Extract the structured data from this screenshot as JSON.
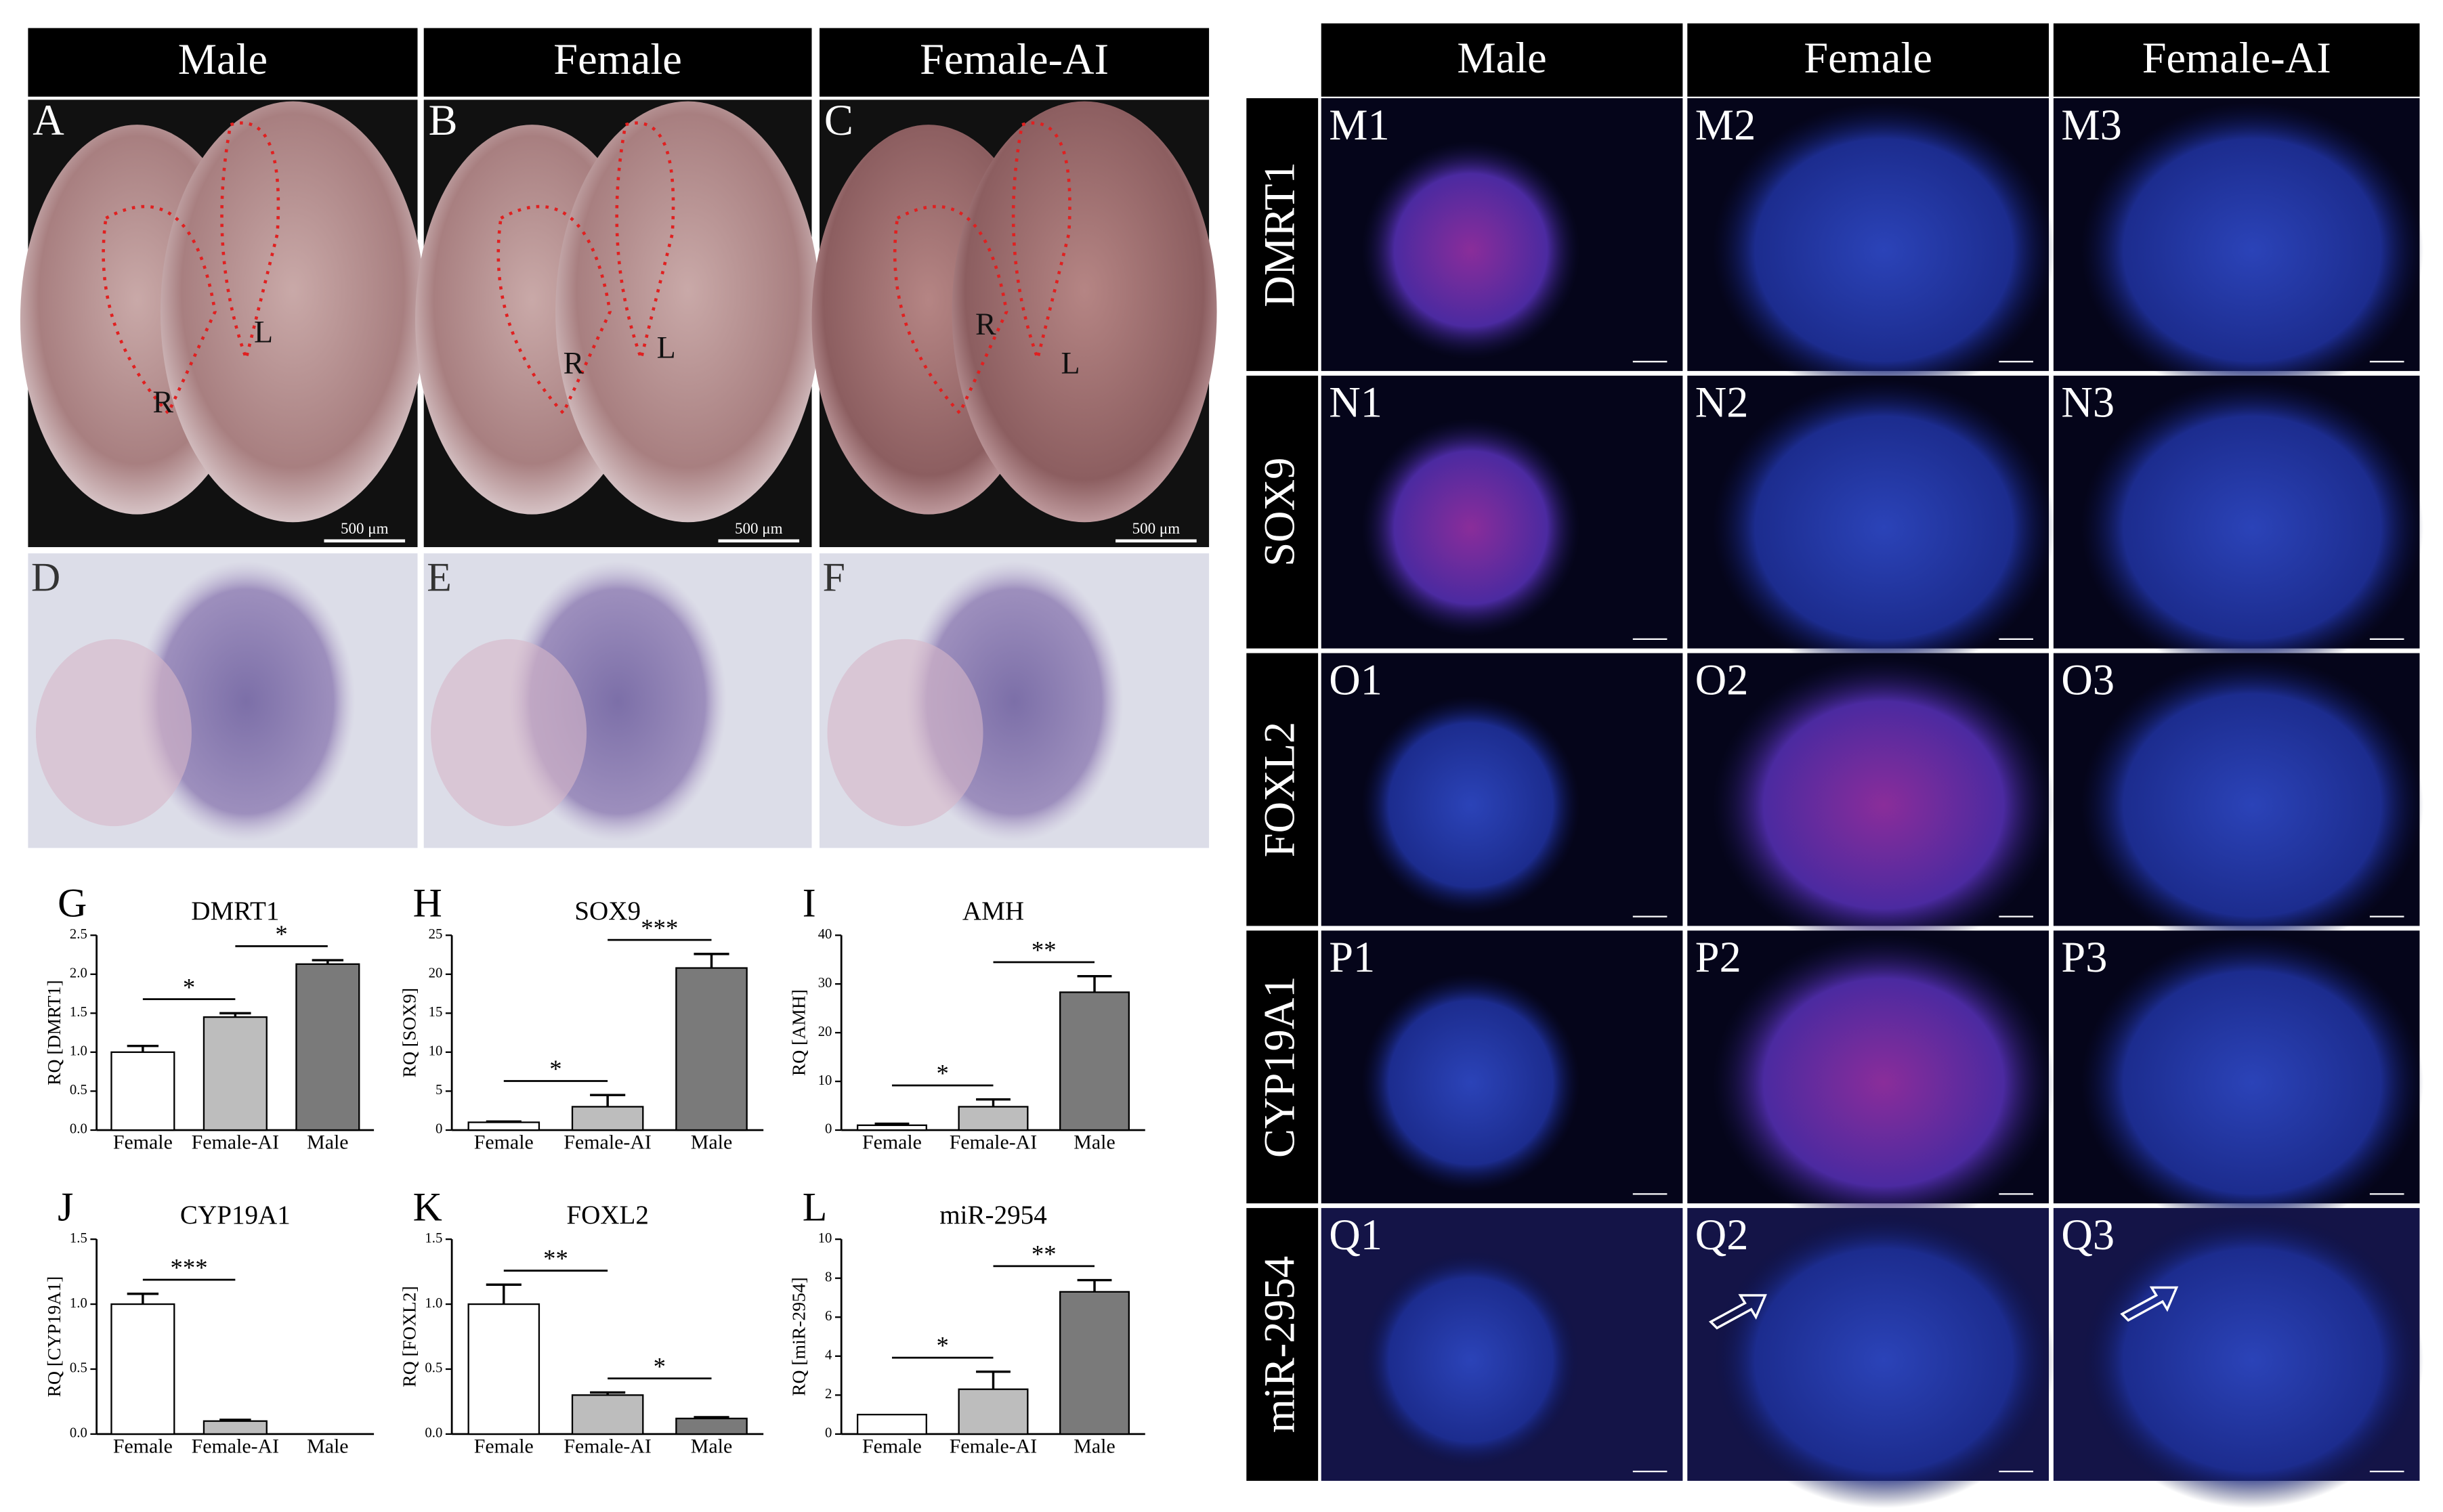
{
  "figure": {
    "left": {
      "columns": [
        "Male",
        "Female",
        "Female-AI"
      ],
      "panels": [
        [
          "A",
          "B",
          "C"
        ],
        [
          "D",
          "E",
          "F"
        ]
      ],
      "lobe_labels": [
        "R",
        "L"
      ],
      "scale_bar": "500 μm"
    },
    "right": {
      "columns": [
        "Male",
        "Female",
        "Female-AI"
      ],
      "rows": [
        {
          "label": "DMRT1",
          "panels": [
            "M1",
            "M2",
            "M3"
          ]
        },
        {
          "label": "SOX9",
          "panels": [
            "N1",
            "N2",
            "N3"
          ]
        },
        {
          "label": "FOXL2",
          "panels": [
            "O1",
            "O2",
            "O3"
          ]
        },
        {
          "label": "CYP19A1",
          "panels": [
            "P1",
            "P2",
            "P3"
          ]
        },
        {
          "label": "miR-2954",
          "panels": [
            "Q1",
            "Q2",
            "Q3"
          ]
        }
      ]
    }
  },
  "chart_data": [
    {
      "type": "bar",
      "panel": "G",
      "title": "DMRT1",
      "y_label": "RQ [DMRT1]",
      "categories": [
        "Female",
        "Female-AI",
        "Male"
      ],
      "values": [
        1.0,
        1.45,
        2.13
      ],
      "errors": [
        0.08,
        0.05,
        0.05
      ],
      "colors": [
        "#ffffff",
        "#bdbdbd",
        "#7a7a7a"
      ],
      "ylim": [
        0,
        2.5
      ],
      "yticks": [
        {
          "value": 0,
          "label": "0.0"
        },
        {
          "value": 0.5,
          "label": "0.5"
        },
        {
          "value": 1,
          "label": "1.0"
        },
        {
          "value": 1.5,
          "label": "1.5"
        },
        {
          "value": 2,
          "label": "2.0"
        },
        {
          "value": 2.5,
          "label": "2.5"
        }
      ],
      "annotations": [
        {
          "label": "*",
          "between": [
            "Female",
            "Female-AI"
          ]
        },
        {
          "label": "*",
          "between": [
            "Female-AI",
            "Male"
          ]
        }
      ]
    },
    {
      "type": "bar",
      "panel": "H",
      "title": "SOX9",
      "y_label": "RQ [SOX9]",
      "categories": [
        "Female",
        "Female-AI",
        "Male"
      ],
      "values": [
        1.0,
        3.0,
        20.8
      ],
      "errors": [
        0.1,
        1.5,
        1.8
      ],
      "colors": [
        "#ffffff",
        "#bdbdbd",
        "#7a7a7a"
      ],
      "ylim": [
        0,
        25
      ],
      "yticks": [
        0,
        5,
        10,
        15,
        20,
        25
      ],
      "annotations": [
        {
          "label": "*",
          "between": [
            "Female",
            "Female-AI"
          ]
        },
        {
          "label": "***",
          "between": [
            "Female-AI",
            "Male"
          ]
        }
      ]
    },
    {
      "type": "bar",
      "panel": "I",
      "title": "AMH",
      "y_label": "RQ [AMH]",
      "categories": [
        "Female",
        "Female-AI",
        "Male"
      ],
      "values": [
        1.0,
        4.8,
        28.3
      ],
      "errors": [
        0.3,
        1.5,
        3.3
      ],
      "colors": [
        "#ffffff",
        "#bdbdbd",
        "#7a7a7a"
      ],
      "ylim": [
        0,
        40
      ],
      "yticks": [
        0,
        10,
        20,
        30,
        40
      ],
      "annotations": [
        {
          "label": "*",
          "between": [
            "Female",
            "Female-AI"
          ]
        },
        {
          "label": "**",
          "between": [
            "Female-AI",
            "Male"
          ]
        }
      ]
    },
    {
      "type": "bar",
      "panel": "J",
      "title": "CYP19A1",
      "y_label": "RQ [CYP19A1]",
      "categories": [
        "Female",
        "Female-AI",
        "Male"
      ],
      "values": [
        1.0,
        0.1,
        0
      ],
      "errors": [
        0.08,
        0.01,
        0
      ],
      "colors": [
        "#ffffff",
        "#bdbdbd",
        "#7a7a7a"
      ],
      "ylim": [
        0,
        1.5
      ],
      "yticks": [
        {
          "value": 0,
          "label": "0.0"
        },
        {
          "value": 0.5,
          "label": "0.5"
        },
        {
          "value": 1,
          "label": "1.0"
        },
        {
          "value": 1.5,
          "label": "1.5"
        }
      ],
      "annotations": [
        {
          "label": "***",
          "between": [
            "Female",
            "Female-AI"
          ]
        }
      ]
    },
    {
      "type": "bar",
      "panel": "K",
      "title": "FOXL2",
      "y_label": "RQ [FOXL2]",
      "categories": [
        "Female",
        "Female-AI",
        "Male"
      ],
      "values": [
        1.0,
        0.3,
        0.12
      ],
      "errors": [
        0.15,
        0.02,
        0.01
      ],
      "colors": [
        "#ffffff",
        "#bdbdbd",
        "#7a7a7a"
      ],
      "ylim": [
        0,
        1.5
      ],
      "yticks": [
        {
          "value": 0,
          "label": "0.0"
        },
        {
          "value": 0.5,
          "label": "0.5"
        },
        {
          "value": 1,
          "label": "1.0"
        },
        {
          "value": 1.5,
          "label": "1.5"
        }
      ],
      "annotations": [
        {
          "label": "**",
          "between": [
            "Female",
            "Female-AI"
          ]
        },
        {
          "label": "*",
          "between": [
            "Female-AI",
            "Male"
          ]
        }
      ]
    },
    {
      "type": "bar",
      "panel": "L",
      "title": "miR-2954",
      "y_label": "RQ [miR-2954]",
      "categories": [
        "Female",
        "Female-AI",
        "Male"
      ],
      "values": [
        1.0,
        2.3,
        7.3
      ],
      "errors": [
        0,
        0.9,
        0.6
      ],
      "colors": [
        "#ffffff",
        "#bdbdbd",
        "#7a7a7a"
      ],
      "ylim": [
        0,
        10
      ],
      "yticks": [
        0,
        2,
        4,
        6,
        8,
        10
      ],
      "annotations": [
        {
          "label": "*",
          "between": [
            "Female",
            "Female-AI"
          ]
        },
        {
          "label": "**",
          "between": [
            "Female-AI",
            "Male"
          ]
        }
      ]
    }
  ]
}
